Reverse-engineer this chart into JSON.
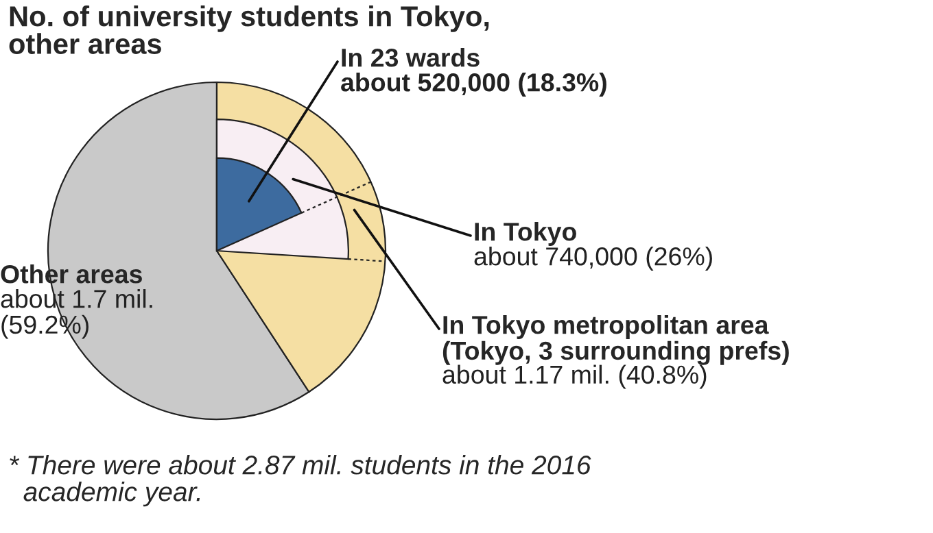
{
  "chart_data": {
    "type": "other",
    "title": "No. of university students in Tokyo,\nother areas",
    "categories": [
      "In 23 wards",
      "In Tokyo",
      "In Tokyo metropolitan area\n(Tokyo, 3 surrounding prefs)",
      "Other areas"
    ],
    "values": [
      18.3,
      26,
      40.8,
      59.2
    ],
    "colors": [
      "#3d6b9f",
      "#f8eef3",
      "#f5dfa3",
      "#c9c9c9"
    ],
    "value_labels": [
      "about 520,000 (18.3%)",
      "about 740,000 (26%)",
      "about 1.17 mil. (40.8%)",
      "about 1.7 mil.\n(59.2%)"
    ],
    "annotations": [
      "* There were about 2.87 mil. students in the 2016\n  academic year."
    ]
  }
}
